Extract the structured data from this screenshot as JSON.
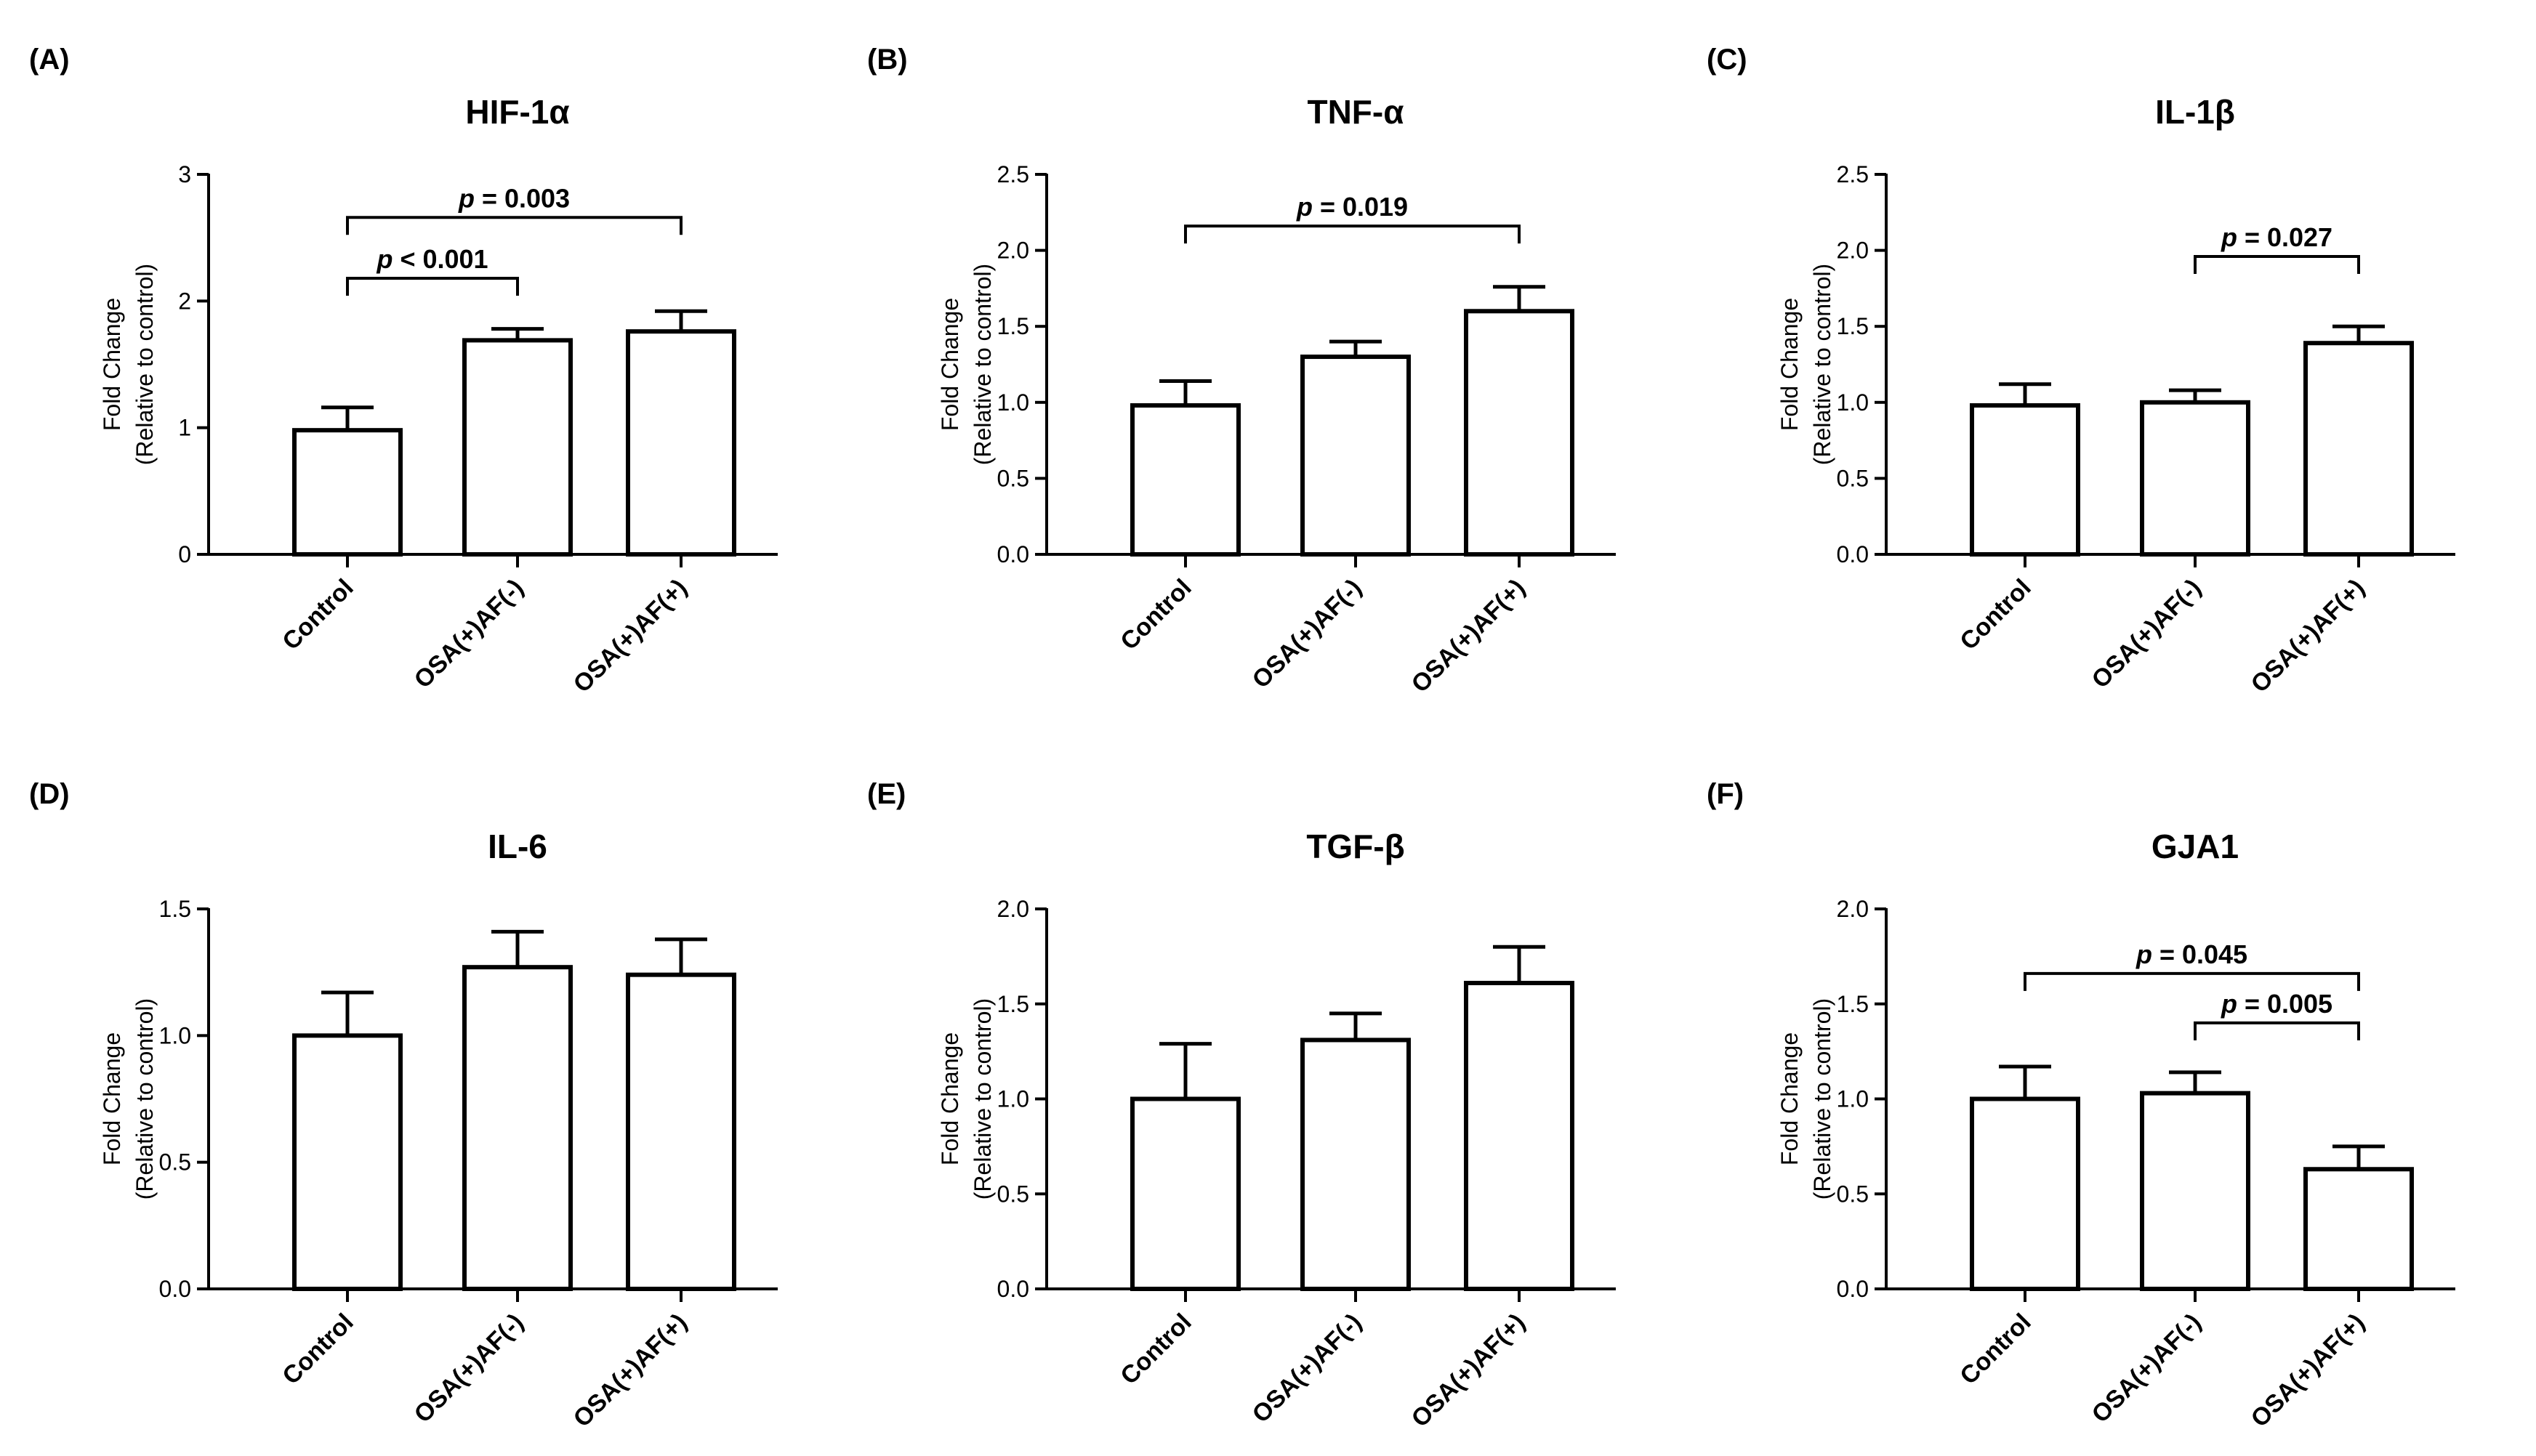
{
  "figure": {
    "colors": {
      "bar_fill": "#ffffff",
      "stroke": "#000000",
      "background": "#ffffff"
    }
  },
  "chart_data": [
    {
      "type": "bar",
      "panel_label": "(A)",
      "title": "HIF-1α",
      "ylabel_line1": "Fold Change",
      "ylabel_line2": "(Relative to control)",
      "xlabel": "",
      "categories": [
        "Control",
        "OSA(+)AF(-)",
        "OSA(+)AF(+)"
      ],
      "values": [
        0.98,
        1.69,
        1.76
      ],
      "errors": [
        0.18,
        0.09,
        0.16
      ],
      "ylim": [
        0,
        3
      ],
      "yticks": [
        "0",
        "1",
        "2",
        "3"
      ],
      "significance": [
        {
          "from": 0,
          "to": 1,
          "stat": "p",
          "text": " < 0.001",
          "y": 2.18
        },
        {
          "from": 0,
          "to": 2,
          "stat": "p",
          "text": " = 0.003",
          "y": 2.66
        }
      ]
    },
    {
      "type": "bar",
      "panel_label": "(B)",
      "title": "TNF-α",
      "ylabel_line1": "Fold Change",
      "ylabel_line2": "(Relative to control)",
      "xlabel": "",
      "categories": [
        "Control",
        "OSA(+)AF(-)",
        "OSA(+)AF(+)"
      ],
      "values": [
        0.98,
        1.3,
        1.6
      ],
      "errors": [
        0.16,
        0.1,
        0.16
      ],
      "ylim": [
        0,
        2.5
      ],
      "yticks": [
        "0.0",
        "0.5",
        "1.0",
        "1.5",
        "2.0",
        "2.5"
      ],
      "significance": [
        {
          "from": 0,
          "to": 2,
          "stat": "p",
          "text": " = 0.019",
          "y": 2.16
        }
      ]
    },
    {
      "type": "bar",
      "panel_label": "(C)",
      "title": "IL-1β",
      "ylabel_line1": "Fold Change",
      "ylabel_line2": "(Relative to control)",
      "xlabel": "",
      "categories": [
        "Control",
        "OSA(+)AF(-)",
        "OSA(+)AF(+)"
      ],
      "values": [
        0.98,
        1.0,
        1.39
      ],
      "errors": [
        0.14,
        0.08,
        0.11
      ],
      "ylim": [
        0,
        2.5
      ],
      "yticks": [
        "0.0",
        "0.5",
        "1.0",
        "1.5",
        "2.0",
        "2.5"
      ],
      "significance": [
        {
          "from": 1,
          "to": 2,
          "stat": "p",
          "text": " = 0.027",
          "y": 1.96
        }
      ]
    },
    {
      "type": "bar",
      "panel_label": "(D)",
      "title": "IL-6",
      "ylabel_line1": "Fold Change",
      "ylabel_line2": "(Relative to control)",
      "xlabel": "",
      "categories": [
        "Control",
        "OSA(+)AF(-)",
        "OSA(+)AF(+)"
      ],
      "values": [
        1.0,
        1.27,
        1.24
      ],
      "errors": [
        0.17,
        0.14,
        0.14
      ],
      "ylim": [
        0,
        1.5
      ],
      "yticks": [
        "0.0",
        "0.5",
        "1.0",
        "1.5"
      ],
      "significance": []
    },
    {
      "type": "bar",
      "panel_label": "(E)",
      "title": "TGF-β",
      "ylabel_line1": "Fold Change",
      "ylabel_line2": "(Relative to control)",
      "xlabel": "",
      "categories": [
        "Control",
        "OSA(+)AF(-)",
        "OSA(+)AF(+)"
      ],
      "values": [
        1.0,
        1.31,
        1.61
      ],
      "errors": [
        0.29,
        0.14,
        0.19
      ],
      "ylim": [
        0,
        2.0
      ],
      "yticks": [
        "0.0",
        "0.5",
        "1.0",
        "1.5",
        "2.0"
      ],
      "significance": []
    },
    {
      "type": "bar",
      "panel_label": "(F)",
      "title": "GJA1",
      "ylabel_line1": "Fold Change",
      "ylabel_line2": "(Relative to control)",
      "xlabel": "",
      "categories": [
        "Control",
        "OSA(+)AF(-)",
        "OSA(+)AF(+)"
      ],
      "values": [
        1.0,
        1.03,
        0.63
      ],
      "errors": [
        0.17,
        0.11,
        0.12
      ],
      "ylim": [
        0,
        2.0
      ],
      "yticks": [
        "0.0",
        "0.5",
        "1.0",
        "1.5",
        "2.0"
      ],
      "significance": [
        {
          "from": 0,
          "to": 2,
          "stat": "p",
          "text": " = 0.045",
          "y": 1.66
        },
        {
          "from": 1,
          "to": 2,
          "stat": "p",
          "text": " = 0.005",
          "y": 1.4
        }
      ]
    }
  ]
}
